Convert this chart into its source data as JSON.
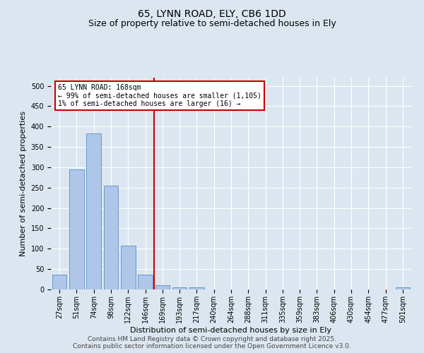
{
  "title": "65, LYNN ROAD, ELY, CB6 1DD",
  "subtitle": "Size of property relative to semi-detached houses in Ely",
  "xlabel": "Distribution of semi-detached houses by size in Ely",
  "ylabel": "Number of semi-detached properties",
  "categories": [
    "27sqm",
    "51sqm",
    "74sqm",
    "98sqm",
    "122sqm",
    "146sqm",
    "169sqm",
    "193sqm",
    "217sqm",
    "240sqm",
    "264sqm",
    "288sqm",
    "311sqm",
    "335sqm",
    "359sqm",
    "383sqm",
    "406sqm",
    "430sqm",
    "454sqm",
    "477sqm",
    "501sqm"
  ],
  "values": [
    37,
    295,
    383,
    255,
    108,
    37,
    10,
    5,
    5,
    0,
    0,
    0,
    0,
    0,
    0,
    0,
    0,
    0,
    0,
    0,
    5
  ],
  "bar_color": "#aec6e8",
  "bar_edge_color": "#5a8fc2",
  "red_line_color": "#cc0000",
  "annotation_text": "65 LYNN ROAD: 168sqm\n← 99% of semi-detached houses are smaller (1,105)\n1% of semi-detached houses are larger (16) →",
  "annotation_box_color": "#cc0000",
  "annotation_bg_color": "#ffffff",
  "ylim": [
    0,
    520
  ],
  "yticks": [
    0,
    50,
    100,
    150,
    200,
    250,
    300,
    350,
    400,
    450,
    500
  ],
  "footer_line1": "Contains HM Land Registry data © Crown copyright and database right 2025.",
  "footer_line2": "Contains public sector information licensed under the Open Government Licence v3.0.",
  "bg_color": "#dce6f0",
  "plot_bg_color": "#dce6f0",
  "title_fontsize": 10,
  "subtitle_fontsize": 9,
  "axis_label_fontsize": 8,
  "tick_fontsize": 7,
  "annotation_fontsize": 7,
  "footer_fontsize": 6.5
}
